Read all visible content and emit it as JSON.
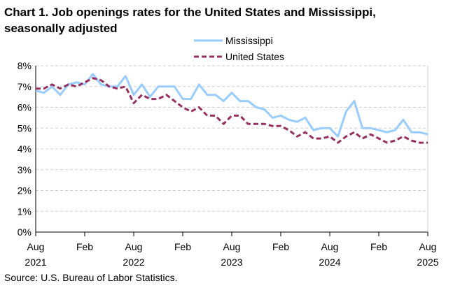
{
  "chart_data": {
    "type": "line",
    "title": "Chart 1. Job openings rates for the United States and Mississippi, seasonally adjusted",
    "source": "Source: U.S. Bureau of Labor Statistics.",
    "x_start": "Aug 2021",
    "x_ticks": [
      {
        "month": "Aug",
        "year": "2021",
        "index": 0
      },
      {
        "month": "Feb",
        "year": "",
        "index": 6
      },
      {
        "month": "Aug",
        "year": "2022",
        "index": 12
      },
      {
        "month": "Feb",
        "year": "",
        "index": 18
      },
      {
        "month": "Aug",
        "year": "2023",
        "index": 24
      },
      {
        "month": "Feb",
        "year": "",
        "index": 30
      },
      {
        "month": "Aug",
        "year": "2024",
        "index": 36
      },
      {
        "month": "Feb",
        "year": "",
        "index": 42
      },
      {
        "month": "Aug",
        "year": "2025",
        "index": 48
      }
    ],
    "y_ticks": [
      "0%",
      "1%",
      "2%",
      "3%",
      "4%",
      "5%",
      "6%",
      "7%",
      "8%"
    ],
    "ylim": [
      0,
      8
    ],
    "grid": true,
    "legend_position": "top-right",
    "series": [
      {
        "name": "Mississippi",
        "color": "#99CCFF",
        "style": "solid",
        "values": [
          6.8,
          6.7,
          7.0,
          6.6,
          7.1,
          7.2,
          7.1,
          7.6,
          7.1,
          7.0,
          7.0,
          7.5,
          6.6,
          7.1,
          6.5,
          7.0,
          7.0,
          7.0,
          6.4,
          6.4,
          7.1,
          6.6,
          6.6,
          6.3,
          6.7,
          6.3,
          6.3,
          6.0,
          5.9,
          5.5,
          5.6,
          5.4,
          5.3,
          5.5,
          4.9,
          5.0,
          5.0,
          4.6,
          5.8,
          6.3,
          5.0,
          5.0,
          4.9,
          4.8,
          4.9,
          5.4,
          4.8,
          4.8,
          4.7
        ]
      },
      {
        "name": "United States",
        "color": "#96305F",
        "style": "dashed",
        "values": [
          6.9,
          6.9,
          7.1,
          6.9,
          7.1,
          7.0,
          7.2,
          7.4,
          7.3,
          7.0,
          6.9,
          7.0,
          6.2,
          6.6,
          6.4,
          6.4,
          6.6,
          6.3,
          6.0,
          5.8,
          6.0,
          5.6,
          5.6,
          5.2,
          5.6,
          5.6,
          5.2,
          5.2,
          5.2,
          5.1,
          5.1,
          4.9,
          4.6,
          4.8,
          4.5,
          4.5,
          4.6,
          4.3,
          4.6,
          4.8,
          4.5,
          4.7,
          4.5,
          4.3,
          4.4,
          4.6,
          4.4,
          4.3,
          4.3
        ]
      }
    ]
  }
}
